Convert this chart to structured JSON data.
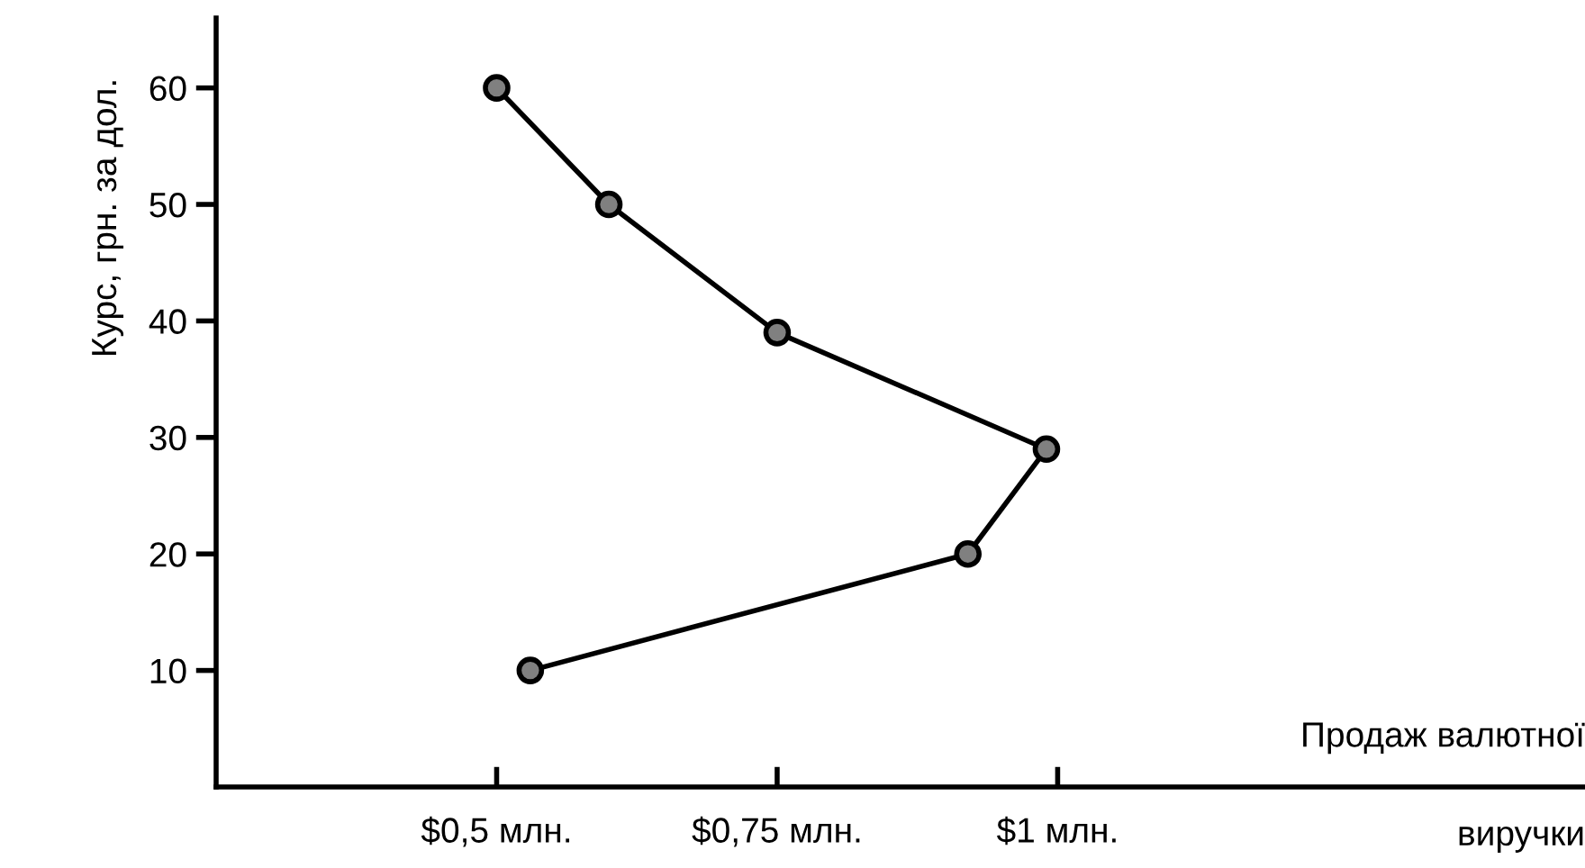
{
  "chart_data": {
    "type": "line",
    "xlabel": "Продаж валютної\nвиручки",
    "ylabel": "Курс, грн. за дол.",
    "series": [
      {
        "color": "#000000",
        "x": [
          0.5,
          0.6,
          0.75,
          0.99,
          0.92,
          0.53
        ],
        "values": [
          60,
          50,
          39,
          29,
          20,
          10
        ]
      }
    ],
    "marker": "circle",
    "line_style": "solid",
    "grid": false,
    "legend": false,
    "xlim": [
      0.25,
      1.47
    ],
    "ylim": [
      0,
      66
    ],
    "xticks": [
      {
        "value": 0.5,
        "label": "$0,5 млн."
      },
      {
        "value": 0.75,
        "label": "$0,75 млн."
      },
      {
        "value": 1,
        "label": "$1 млн."
      }
    ],
    "yticks": [
      10,
      20,
      30,
      40,
      50,
      60
    ]
  }
}
